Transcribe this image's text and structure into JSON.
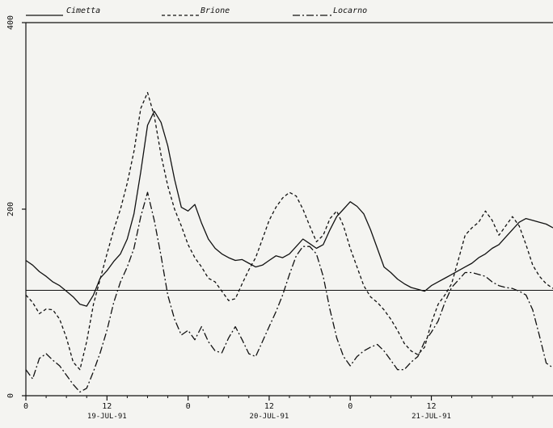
{
  "chart_data": {
    "type": "line",
    "title": "",
    "xlabel": "",
    "ylabel": "",
    "xlim": [
      0,
      78
    ],
    "ylim": [
      0,
      400
    ],
    "grid": false,
    "legend_position": "top",
    "reference_line_y": 113,
    "x_ticks": [
      {
        "x": 0,
        "label": "0",
        "date": ""
      },
      {
        "x": 12,
        "label": "12",
        "date": "19-JUL-91"
      },
      {
        "x": 24,
        "label": "0",
        "date": ""
      },
      {
        "x": 36,
        "label": "12",
        "date": "20-JUL-91"
      },
      {
        "x": 48,
        "label": "0",
        "date": ""
      },
      {
        "x": 60,
        "label": "12",
        "date": "21-JUL-91"
      }
    ],
    "y_ticks": [
      {
        "y": 0,
        "label": "0"
      },
      {
        "y": 200,
        "label": "200"
      },
      {
        "y": 400,
        "label": "400"
      }
    ],
    "series": [
      {
        "name": "Cimetta",
        "style": "solid",
        "x": [
          0,
          1,
          2,
          3,
          4,
          5,
          6,
          7,
          8,
          9,
          10,
          11,
          12,
          13,
          14,
          15,
          16,
          17,
          18,
          19,
          20,
          21,
          22,
          23,
          24,
          25,
          26,
          27,
          28,
          29,
          30,
          31,
          32,
          33,
          34,
          35,
          36,
          37,
          38,
          39,
          40,
          41,
          42,
          43,
          44,
          45,
          46,
          47,
          48,
          49,
          50,
          51,
          52,
          53,
          54,
          55,
          56,
          57,
          58,
          59,
          60,
          61,
          62,
          63,
          64,
          65,
          66,
          67,
          68,
          69,
          70,
          71,
          72,
          73,
          74,
          75,
          76,
          77,
          78
        ],
        "values": [
          145,
          140,
          133,
          128,
          122,
          118,
          112,
          106,
          98,
          96,
          108,
          126,
          134,
          144,
          152,
          168,
          195,
          240,
          290,
          305,
          293,
          268,
          232,
          202,
          198,
          205,
          185,
          168,
          158,
          152,
          148,
          145,
          146,
          142,
          138,
          140,
          145,
          150,
          148,
          152,
          160,
          168,
          163,
          158,
          162,
          178,
          192,
          200,
          208,
          203,
          195,
          178,
          158,
          138,
          132,
          125,
          120,
          116,
          114,
          112,
          118,
          122,
          126,
          130,
          134,
          138,
          142,
          148,
          152,
          158,
          162,
          170,
          178,
          186,
          190,
          188,
          186,
          184,
          180
        ]
      },
      {
        "name": "Brione",
        "style": "dashed",
        "x": [
          0,
          1,
          2,
          3,
          4,
          5,
          6,
          7,
          8,
          9,
          10,
          11,
          12,
          13,
          14,
          15,
          16,
          17,
          18,
          19,
          20,
          21,
          22,
          23,
          24,
          25,
          26,
          27,
          28,
          29,
          30,
          31,
          32,
          33,
          34,
          35,
          36,
          37,
          38,
          39,
          40,
          41,
          42,
          43,
          44,
          45,
          46,
          47,
          48,
          49,
          50,
          51,
          52,
          53,
          54,
          55,
          56,
          57,
          58,
          59,
          60,
          61,
          62,
          63,
          64,
          65,
          66,
          67,
          68,
          69,
          70,
          71,
          72,
          73,
          74,
          75,
          76,
          77,
          78
        ],
        "values": [
          108,
          100,
          88,
          93,
          92,
          82,
          62,
          36,
          28,
          58,
          98,
          125,
          152,
          178,
          200,
          228,
          262,
          308,
          325,
          300,
          258,
          225,
          200,
          182,
          162,
          148,
          138,
          126,
          122,
          112,
          102,
          104,
          120,
          135,
          148,
          168,
          188,
          202,
          212,
          218,
          214,
          200,
          182,
          165,
          172,
          190,
          198,
          182,
          158,
          138,
          118,
          106,
          100,
          92,
          82,
          70,
          56,
          48,
          44,
          52,
          78,
          98,
          108,
          120,
          146,
          172,
          180,
          186,
          198,
          188,
          172,
          182,
          192,
          182,
          162,
          140,
          128,
          120,
          115
        ]
      },
      {
        "name": "Locarno",
        "style": "dashdot",
        "x": [
          0,
          1,
          2,
          3,
          4,
          5,
          6,
          7,
          8,
          9,
          10,
          11,
          12,
          13,
          14,
          15,
          16,
          17,
          18,
          19,
          20,
          21,
          22,
          23,
          24,
          25,
          26,
          27,
          28,
          29,
          30,
          31,
          32,
          33,
          34,
          35,
          36,
          37,
          38,
          39,
          40,
          41,
          42,
          43,
          44,
          45,
          46,
          47,
          48,
          49,
          50,
          51,
          52,
          53,
          54,
          55,
          56,
          57,
          58,
          59,
          60,
          61,
          62,
          63,
          64,
          65,
          66,
          67,
          68,
          69,
          70,
          71,
          72,
          73,
          74,
          75,
          76,
          77,
          78
        ],
        "values": [
          28,
          18,
          40,
          45,
          38,
          32,
          22,
          12,
          4,
          8,
          26,
          46,
          70,
          100,
          122,
          138,
          158,
          192,
          218,
          188,
          150,
          108,
          82,
          65,
          70,
          60,
          74,
          58,
          48,
          46,
          62,
          74,
          60,
          45,
          42,
          58,
          74,
          90,
          108,
          130,
          150,
          160,
          160,
          152,
          128,
          92,
          62,
          42,
          32,
          42,
          48,
          52,
          55,
          48,
          38,
          28,
          28,
          36,
          42,
          58,
          68,
          80,
          100,
          116,
          124,
          132,
          132,
          130,
          128,
          122,
          118,
          116,
          115,
          112,
          108,
          92,
          64,
          35,
          30
        ]
      }
    ]
  }
}
